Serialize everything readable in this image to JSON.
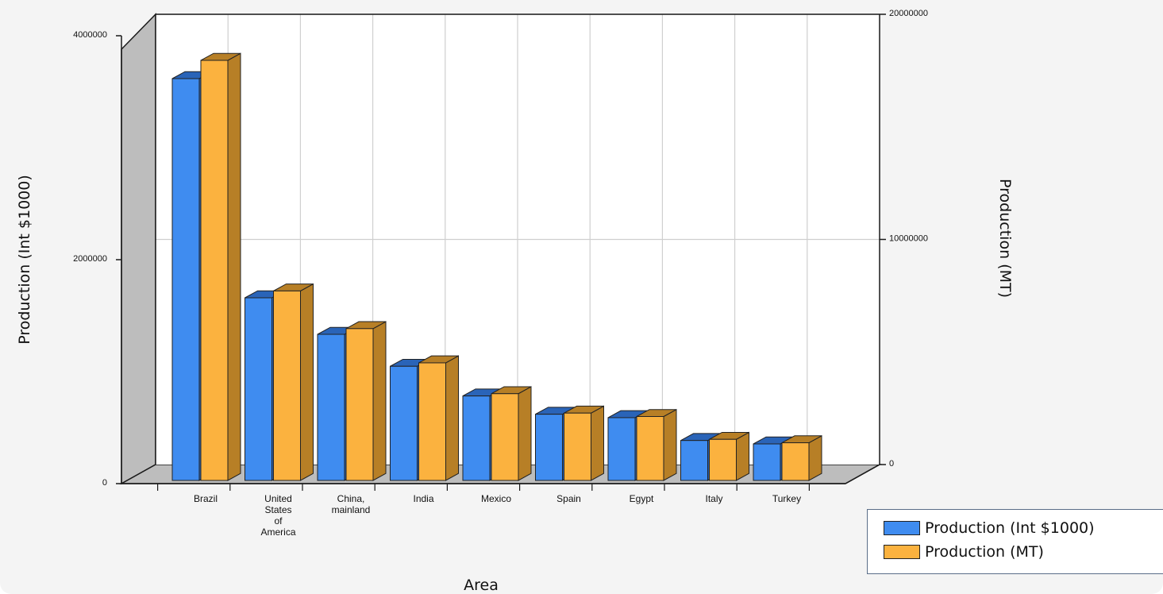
{
  "chart_data": {
    "type": "bar",
    "style": "3d-clustered-column",
    "categories": [
      "Brazil",
      "United States of America",
      "China, mainland",
      "India",
      "Mexico",
      "Spain",
      "Egypt",
      "Italy",
      "Turkey"
    ],
    "category_lines": [
      [
        "Brazil"
      ],
      [
        "United",
        "States",
        "of",
        "America"
      ],
      [
        "China,",
        "mainland"
      ],
      [
        "India"
      ],
      [
        "Mexico"
      ],
      [
        "Spain"
      ],
      [
        "Egypt"
      ],
      [
        "Italy"
      ],
      [
        "Turkey"
      ]
    ],
    "series": [
      {
        "name": "Production (Int $1000)",
        "axis": "left",
        "color": "#3f8cf0",
        "side_color": "#2a64b8",
        "values": [
          3520000,
          1600000,
          1280000,
          1000000,
          740000,
          580000,
          550000,
          350000,
          320000
        ]
      },
      {
        "name": "Production (MT)",
        "axis": "right",
        "color": "#fbb23f",
        "side_color": "#b77f26",
        "values": [
          18400000,
          8300000,
          6650000,
          5150000,
          3800000,
          2950000,
          2800000,
          1800000,
          1650000
        ]
      }
    ],
    "xlabel": "Area",
    "ylabel": "Production (Int $1000)",
    "y2label": "Production (MT)",
    "ylim": [
      0,
      4000000
    ],
    "y2lim": [
      0,
      20000000
    ],
    "yticks": [
      "0",
      "2000000",
      "4000000"
    ],
    "y2ticks": [
      "0",
      "10000000",
      "20000000"
    ],
    "grid": true,
    "legend_position": "bottom-right"
  },
  "legend": {
    "items": [
      "Production (Int $1000)",
      "Production (MT)"
    ]
  }
}
